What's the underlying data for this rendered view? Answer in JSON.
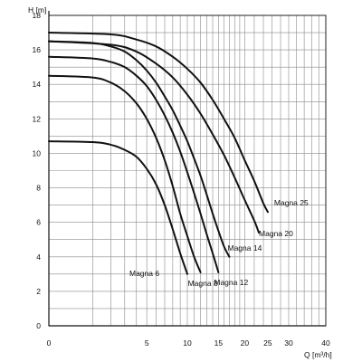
{
  "chart_data": {
    "type": "line",
    "title": "",
    "xlabel": "Q [m³/h]",
    "ylabel": "H [m]",
    "x_scale": "sqrt",
    "xlim": [
      0,
      40
    ],
    "ylim": [
      0,
      18
    ],
    "x_major_ticks": [
      0,
      5,
      10,
      15,
      20,
      25,
      30,
      40
    ],
    "x_tick_labels": [
      "0",
      "5",
      "10",
      "15",
      "20",
      "25",
      "30",
      "40"
    ],
    "x_grid_lines": [
      0,
      1,
      2,
      3,
      4,
      5,
      6,
      7,
      8,
      9,
      10,
      11,
      12,
      13,
      14,
      15,
      16,
      17,
      18,
      19,
      20,
      22,
      24,
      26,
      28,
      30,
      32,
      34,
      36,
      38,
      40
    ],
    "y_major_ticks": [
      0,
      2,
      4,
      6,
      8,
      10,
      12,
      14,
      16,
      18
    ],
    "y_tick_labels": [
      "0",
      "2",
      "4",
      "6",
      "8",
      "10",
      "12",
      "14",
      "16",
      "18"
    ],
    "y_grid_step": 1,
    "grid": true,
    "series": [
      {
        "name": "Magna 6",
        "points": [
          [
            0,
            10.7
          ],
          [
            1,
            10.65
          ],
          [
            2,
            10.5
          ],
          [
            3,
            10.2
          ],
          [
            4,
            9.8
          ],
          [
            5,
            9.1
          ],
          [
            6,
            8.2
          ],
          [
            7,
            7.0
          ],
          [
            8,
            5.6
          ],
          [
            9,
            4.2
          ],
          [
            10,
            3.0
          ]
        ]
      },
      {
        "name": "Magna 8",
        "points": [
          [
            0,
            14.5
          ],
          [
            1,
            14.4
          ],
          [
            2,
            14.1
          ],
          [
            3,
            13.6
          ],
          [
            4,
            12.9
          ],
          [
            5,
            12.0
          ],
          [
            6,
            10.9
          ],
          [
            7,
            9.6
          ],
          [
            8,
            8.1
          ],
          [
            9,
            6.5
          ],
          [
            10,
            5.2
          ],
          [
            11,
            4.0
          ],
          [
            12,
            3.1
          ]
        ]
      },
      {
        "name": "Magna 12",
        "points": [
          [
            0,
            15.6
          ],
          [
            1,
            15.5
          ],
          [
            2,
            15.3
          ],
          [
            3,
            15.0
          ],
          [
            4,
            14.5
          ],
          [
            5,
            13.9
          ],
          [
            6,
            13.1
          ],
          [
            7,
            12.2
          ],
          [
            8,
            11.2
          ],
          [
            9,
            10.1
          ],
          [
            10,
            8.9
          ],
          [
            11,
            7.7
          ],
          [
            12,
            6.5
          ],
          [
            13,
            5.3
          ],
          [
            14,
            4.2
          ],
          [
            15,
            3.1
          ]
        ]
      },
      {
        "name": "Magna 14",
        "points": [
          [
            0,
            16.5
          ],
          [
            1,
            16.4
          ],
          [
            2,
            16.2
          ],
          [
            3,
            15.9
          ],
          [
            4,
            15.4
          ],
          [
            5,
            14.8
          ],
          [
            6,
            14.1
          ],
          [
            7,
            13.3
          ],
          [
            8,
            12.5
          ],
          [
            9,
            11.6
          ],
          [
            10,
            10.7
          ],
          [
            11,
            9.7
          ],
          [
            12,
            8.7
          ],
          [
            13,
            7.6
          ],
          [
            14,
            6.5
          ],
          [
            15,
            5.5
          ],
          [
            16,
            4.6
          ],
          [
            17,
            4.0
          ]
        ]
      },
      {
        "name": "Magna 20",
        "points": [
          [
            0,
            16.5
          ],
          [
            2,
            16.3
          ],
          [
            4,
            15.9
          ],
          [
            6,
            15.2
          ],
          [
            8,
            14.4
          ],
          [
            10,
            13.4
          ],
          [
            12,
            12.3
          ],
          [
            14,
            11.1
          ],
          [
            16,
            9.9
          ],
          [
            18,
            8.6
          ],
          [
            20,
            7.3
          ],
          [
            22,
            6.1
          ],
          [
            23,
            5.4
          ]
        ]
      },
      {
        "name": "Magna 25",
        "points": [
          [
            0,
            17.0
          ],
          [
            2,
            16.9
          ],
          [
            4,
            16.6
          ],
          [
            6,
            16.2
          ],
          [
            8,
            15.6
          ],
          [
            10,
            14.9
          ],
          [
            12,
            14.1
          ],
          [
            14,
            13.1
          ],
          [
            16,
            12.0
          ],
          [
            18,
            10.9
          ],
          [
            20,
            9.6
          ],
          [
            22,
            8.4
          ],
          [
            24,
            7.1
          ],
          [
            25,
            6.6
          ]
        ]
      }
    ],
    "annotations": [
      {
        "text": "Magna 6",
        "anchor": [
          10,
          3.0
        ]
      },
      {
        "text": "Magna 8",
        "anchor": [
          12,
          3.1
        ]
      },
      {
        "text": "Magna 12",
        "anchor": [
          15,
          3.1
        ]
      },
      {
        "text": "Magna 14",
        "anchor": [
          17,
          4.0
        ]
      },
      {
        "text": "Magna 20",
        "anchor": [
          23,
          5.4
        ]
      },
      {
        "text": "Magna 25",
        "anchor": [
          25,
          6.6
        ]
      }
    ]
  }
}
